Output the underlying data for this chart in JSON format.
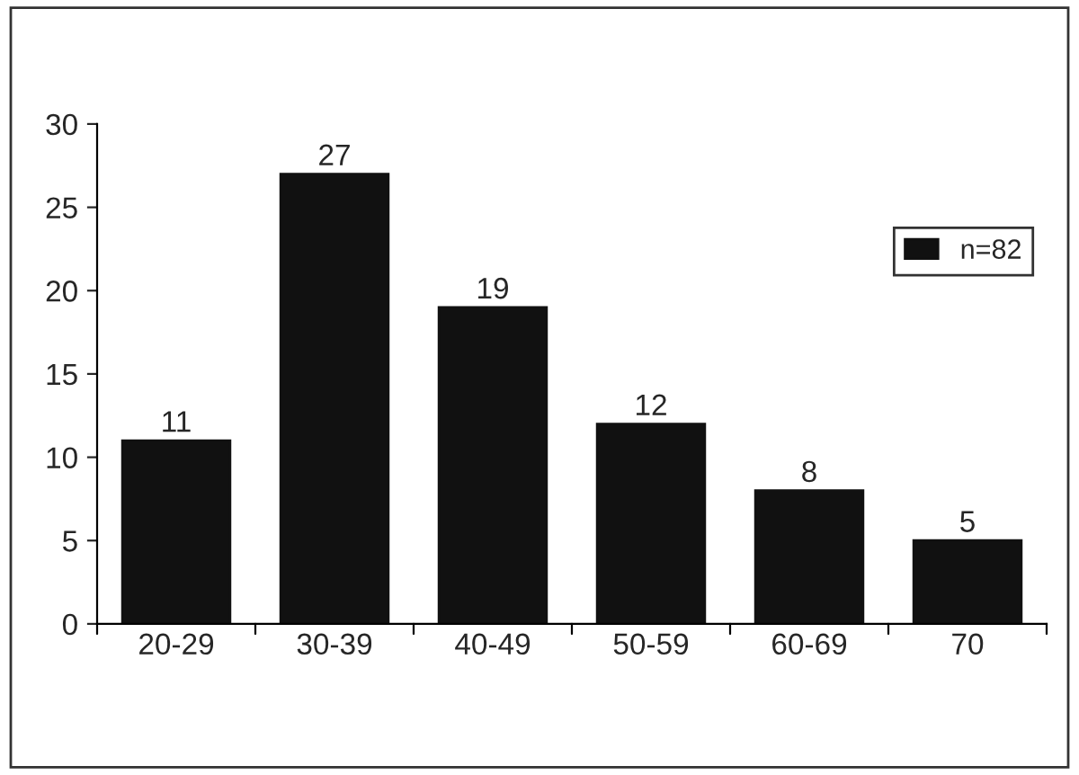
{
  "chart_data": {
    "type": "bar",
    "categories": [
      "20-29",
      "30-39",
      "40-49",
      "50-59",
      "60-69",
      "70"
    ],
    "series": [
      {
        "name": "n=82",
        "color": "#111111",
        "values": [
          11,
          27,
          19,
          12,
          8,
          5
        ]
      }
    ],
    "ylim": [
      0,
      30
    ],
    "yticks": [
      0,
      5,
      10,
      15,
      20,
      25,
      30
    ],
    "data_labels": true,
    "legend": "top right",
    "grid": false
  }
}
